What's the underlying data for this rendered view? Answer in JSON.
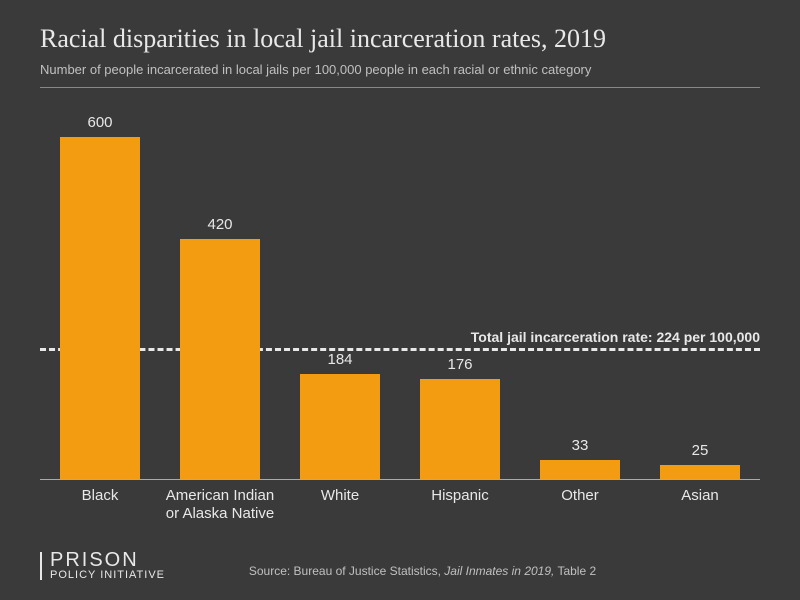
{
  "title": "Racial disparities in local jail incarceration rates, 2019",
  "subtitle": "Number of people incarcerated in local jails per 100,000 people in each racial or ethnic category",
  "chart": {
    "type": "bar",
    "categories": [
      "Black",
      "American Indian\nor Alaska Native",
      "White",
      "Hispanic",
      "Other",
      "Asian"
    ],
    "values": [
      600,
      420,
      184,
      176,
      33,
      25
    ],
    "bar_color": "#f39c12",
    "ymax": 650,
    "bar_width_pct": 11,
    "reference_line": {
      "value": 224,
      "label": "Total jail incarceration rate: 224 per 100,000",
      "color": "#e8e8e8"
    },
    "background_color": "#3a3a3a",
    "text_color": "#e8e8e8",
    "label_fontsize": 15
  },
  "logo": {
    "line1": "PRISON",
    "line2": "POLICY INITIATIVE"
  },
  "source_prefix": "Source: Bureau of Justice Statistics, ",
  "source_italic": "Jail Inmates in 2019,",
  "source_suffix": " Table 2"
}
